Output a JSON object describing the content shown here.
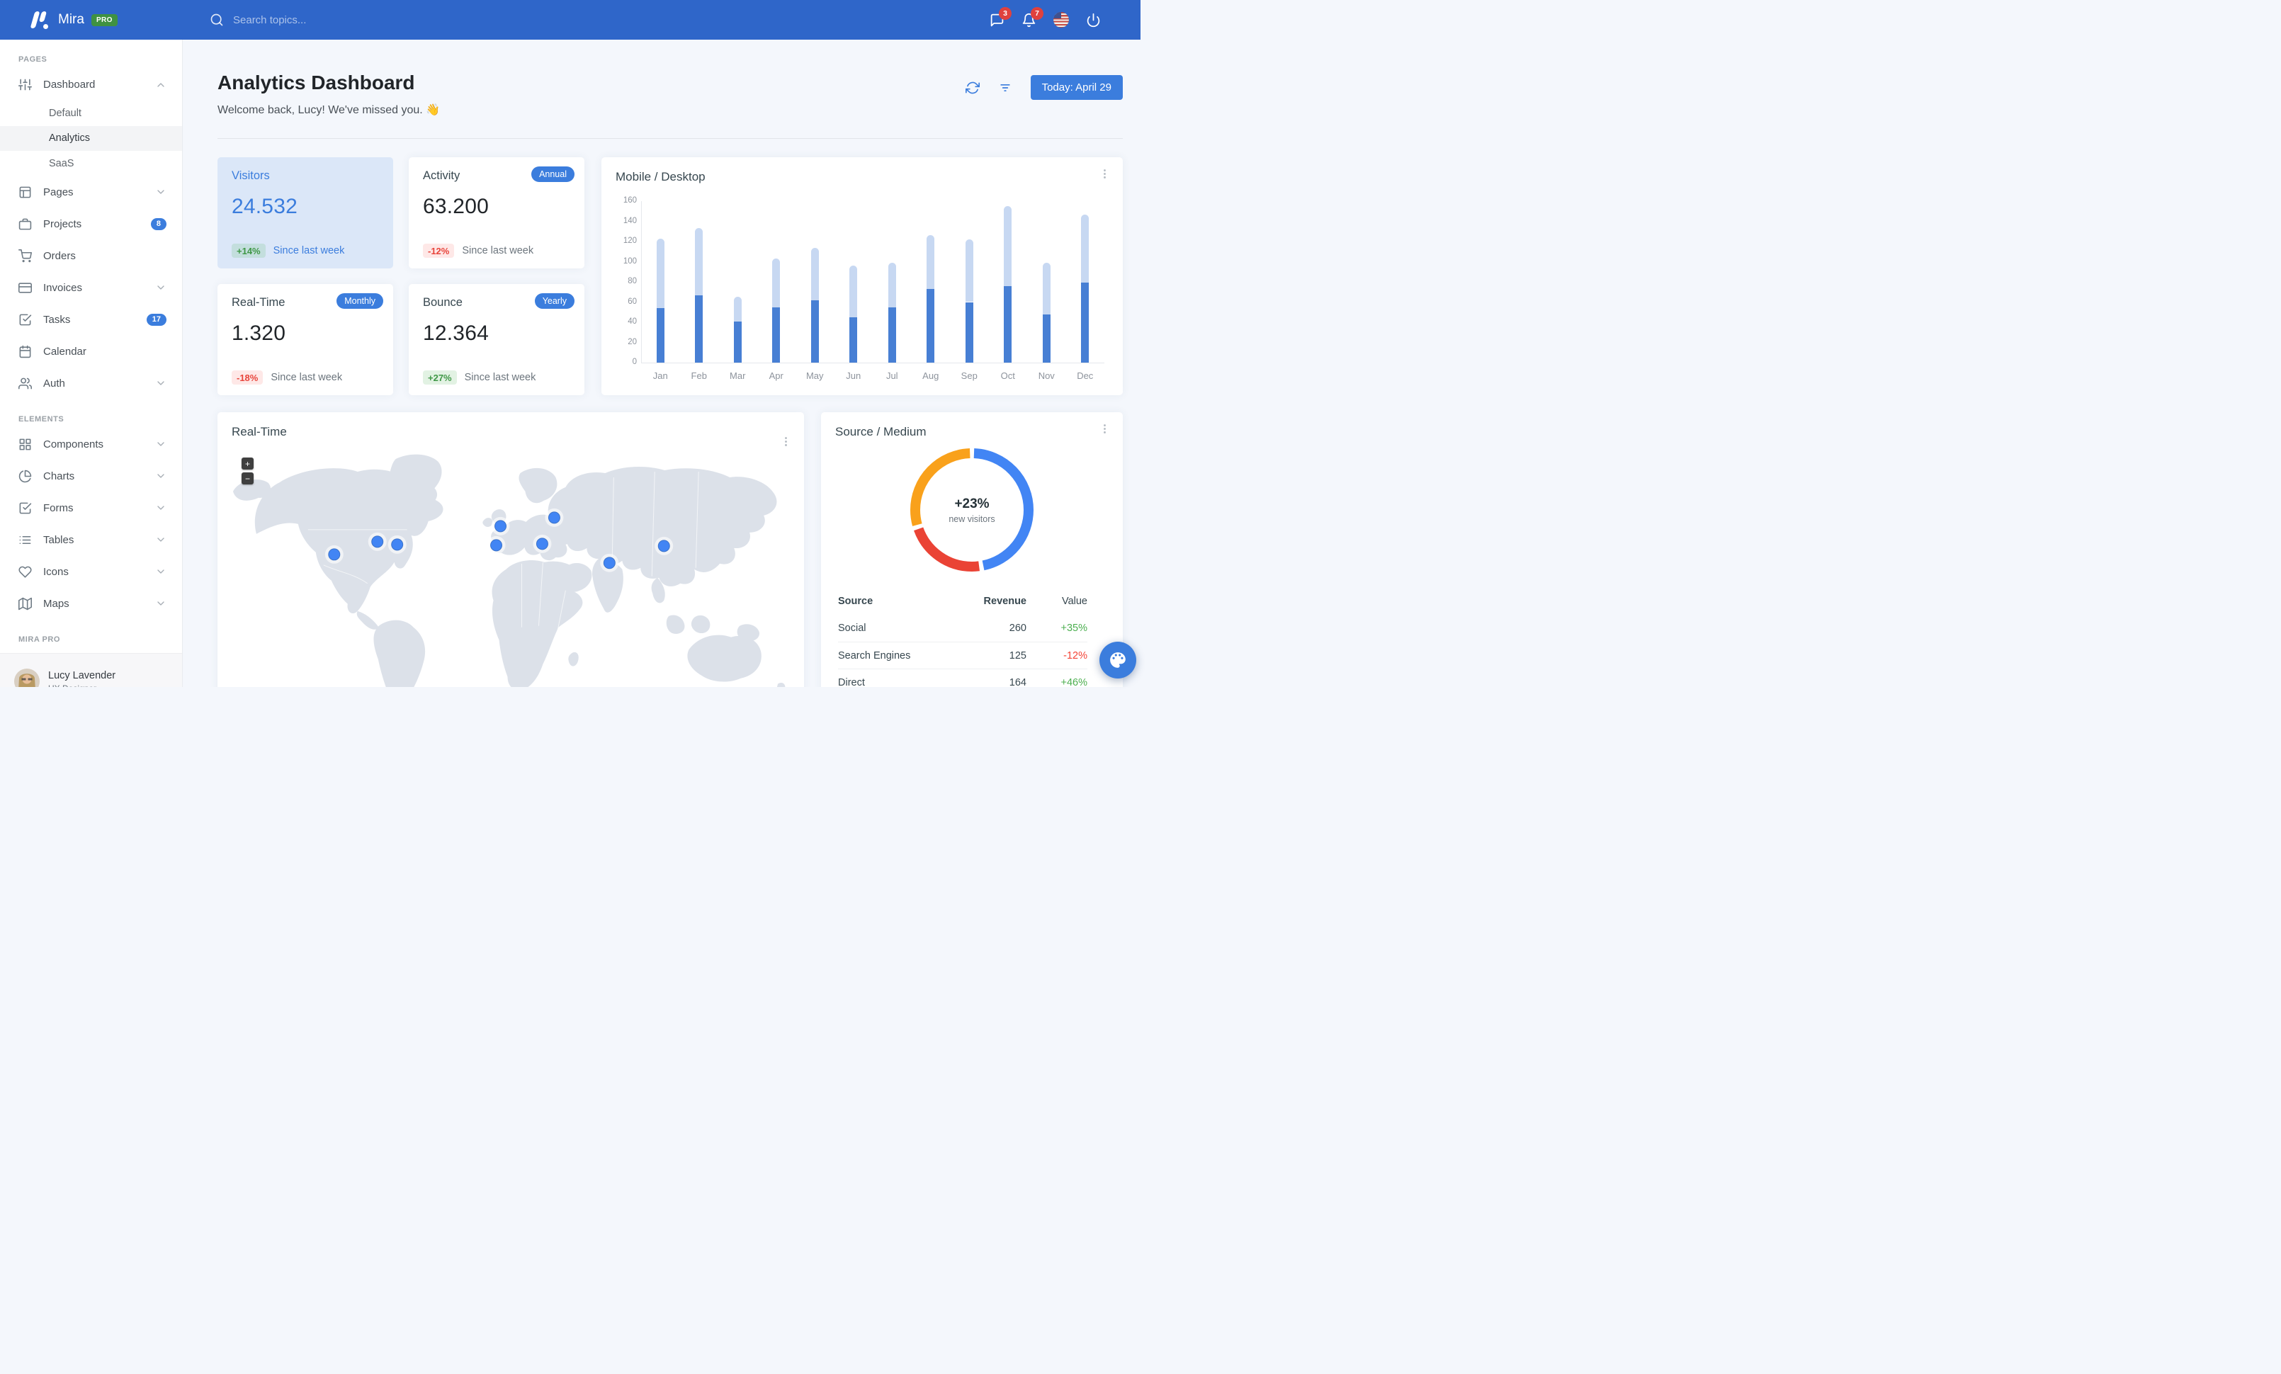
{
  "navbar": {
    "brand": "Mira",
    "brand_badge": "PRO",
    "search_placeholder": "Search topics...",
    "icons": [
      {
        "icon": "message-square-icon",
        "badge": "3"
      },
      {
        "icon": "bell-icon",
        "badge": "7"
      },
      {
        "icon": "us-flag-icon"
      },
      {
        "icon": "power-icon"
      }
    ],
    "colors": {
      "bar": "#2f66c9",
      "badge_red": "#e0413d",
      "pro_green": "#3f9142"
    }
  },
  "sidebar": {
    "sections": [
      {
        "label": "PAGES",
        "items": [
          {
            "label": "Dashboard",
            "icon": "sliders-icon",
            "chevron": "up",
            "children": [
              {
                "label": "Default",
                "active": false
              },
              {
                "label": "Analytics",
                "active": true
              },
              {
                "label": "SaaS",
                "active": false
              }
            ]
          },
          {
            "label": "Pages",
            "icon": "layout-icon",
            "chevron": "down"
          },
          {
            "label": "Projects",
            "icon": "briefcase-icon",
            "badge": "8"
          },
          {
            "label": "Orders",
            "icon": "cart-icon"
          },
          {
            "label": "Invoices",
            "icon": "credit-card-icon",
            "chevron": "down"
          },
          {
            "label": "Tasks",
            "icon": "check-square-icon",
            "badge": "17"
          },
          {
            "label": "Calendar",
            "icon": "calendar-icon"
          },
          {
            "label": "Auth",
            "icon": "users-icon",
            "chevron": "down"
          }
        ]
      },
      {
        "label": "ELEMENTS",
        "items": [
          {
            "label": "Components",
            "icon": "grid-icon",
            "chevron": "down"
          },
          {
            "label": "Charts",
            "icon": "pie-chart-icon",
            "chevron": "down"
          },
          {
            "label": "Forms",
            "icon": "check-square-icon",
            "chevron": "down"
          },
          {
            "label": "Tables",
            "icon": "list-icon",
            "chevron": "down"
          },
          {
            "label": "Icons",
            "icon": "heart-icon",
            "chevron": "down"
          },
          {
            "label": "Maps",
            "icon": "map-icon",
            "chevron": "down"
          }
        ]
      },
      {
        "label": "MIRA PRO",
        "items": []
      }
    ],
    "user": {
      "name": "Lucy Lavender",
      "role": "UX Designer",
      "status": "online"
    }
  },
  "header": {
    "title": "Analytics Dashboard",
    "welcome": "Welcome back, Lucy! We've missed you. 👋",
    "actions": [
      {
        "icon": "refresh-icon"
      },
      {
        "icon": "filter-icon"
      }
    ],
    "date_button": "Today: April 29"
  },
  "stats": [
    {
      "title": "Visitors",
      "value": "24.532",
      "delta": "+14%",
      "delta_dir": "up",
      "note": "Since last week",
      "highlight": true
    },
    {
      "title": "Activity",
      "chip": "Annual",
      "value": "63.200",
      "delta": "-12%",
      "delta_dir": "down",
      "note": "Since last week"
    },
    {
      "title": "Real-Time",
      "chip": "Monthly",
      "value": "1.320",
      "delta": "-18%",
      "delta_dir": "down",
      "note": "Since last week"
    },
    {
      "title": "Bounce",
      "chip": "Yearly",
      "value": "12.364",
      "delta": "+27%",
      "delta_dir": "up",
      "note": "Since last week"
    }
  ],
  "chart_data": [
    {
      "id": "mobile_desktop",
      "type": "bar",
      "stacked": true,
      "title": "Mobile / Desktop",
      "categories": [
        "Jan",
        "Feb",
        "Mar",
        "Apr",
        "May",
        "Jun",
        "Jul",
        "Aug",
        "Sep",
        "Oct",
        "Nov",
        "Dec"
      ],
      "series": [
        {
          "name": "Mobile",
          "color": "#477fd4",
          "values": [
            54,
            67,
            41,
            55,
            62,
            45,
            55,
            73,
            60,
            76,
            48,
            79
          ]
        },
        {
          "name": "Desktop",
          "color": "#c7d8f2",
          "values": [
            69,
            66,
            24,
            48,
            52,
            51,
            44,
            53,
            62,
            79,
            51,
            68
          ]
        }
      ],
      "ylim": [
        0,
        160
      ],
      "yticks": [
        0,
        20,
        40,
        60,
        80,
        100,
        120,
        140,
        160
      ],
      "grid": false,
      "legend": "none"
    },
    {
      "id": "source_medium",
      "type": "donut",
      "title": "Source / Medium",
      "center_label": "+23%",
      "center_sublabel": "new visitors",
      "slices": [
        {
          "label": "Social",
          "value": 260,
          "color": "#4285f4"
        },
        {
          "label": "Search Engines",
          "value": 125,
          "color": "#ea4335"
        },
        {
          "label": "Direct",
          "value": 164,
          "color": "#f9a11b"
        }
      ],
      "table": {
        "headers": [
          "Source",
          "Revenue",
          "Value"
        ],
        "rows": [
          {
            "source": "Social",
            "revenue": "260",
            "value": "+35%",
            "dir": "up"
          },
          {
            "source": "Search Engines",
            "revenue": "125",
            "value": "-12%",
            "dir": "down"
          },
          {
            "source": "Direct",
            "revenue": "164",
            "value": "+46%",
            "dir": "up"
          }
        ]
      }
    },
    {
      "id": "realtime_map",
      "type": "map",
      "title": "Real-Time",
      "zoom_in": "+",
      "zoom_out": "−",
      "marker_color": "#4285f4",
      "markers": [
        {
          "name": "us-west",
          "x": 165,
          "y": 147
        },
        {
          "name": "us-central",
          "x": 226,
          "y": 129
        },
        {
          "name": "us-east",
          "x": 254,
          "y": 133
        },
        {
          "name": "uk",
          "x": 400,
          "y": 107
        },
        {
          "name": "spain",
          "x": 394,
          "y": 134
        },
        {
          "name": "russia",
          "x": 476,
          "y": 95
        },
        {
          "name": "turkey",
          "x": 459,
          "y": 132
        },
        {
          "name": "india",
          "x": 554,
          "y": 159
        },
        {
          "name": "china",
          "x": 631,
          "y": 135
        }
      ]
    }
  ],
  "fab": {
    "icon": "palette-icon"
  }
}
